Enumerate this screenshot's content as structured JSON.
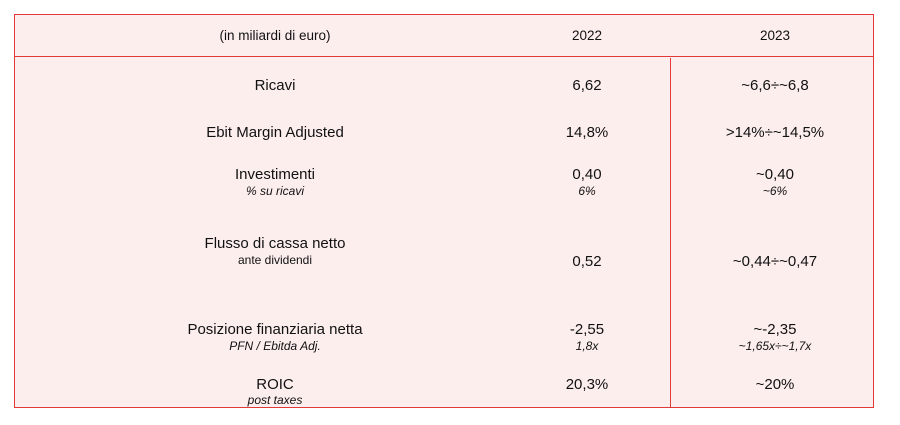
{
  "header": {
    "label": "(in miliardi di euro)",
    "col_2022": "2022",
    "col_2023": "2023"
  },
  "colors": {
    "border": "#e23a3a",
    "background": "#fdeeee"
  },
  "rows": [
    {
      "label": "Ricavi",
      "v2022": "6,62",
      "v2023": "~6,6÷~6,8"
    },
    {
      "label": "Ebit Margin Adjusted",
      "v2022": "14,8%",
      "v2023": ">14%÷~14,5%"
    },
    {
      "label": "Investimenti",
      "sub": "% su ricavi",
      "v2022": "0,40",
      "v2022_sub": "6%",
      "v2023": "~0,40",
      "v2023_sub": "~6%"
    },
    {
      "label": "Flusso di cassa netto",
      "sub": "ante dividendi",
      "v2022": "0,52",
      "v2023": "~0,44÷~0,47"
    },
    {
      "label": "Posizione finanziaria netta",
      "sub": "PFN / Ebitda Adj.",
      "v2022": "-2,55",
      "v2022_sub": "1,8x",
      "v2023": "~-2,35",
      "v2023_sub": "~1,65x÷~1,7x"
    },
    {
      "label": "ROIC",
      "sub": "post taxes",
      "v2022": "20,3%",
      "v2023": "~20%"
    }
  ]
}
